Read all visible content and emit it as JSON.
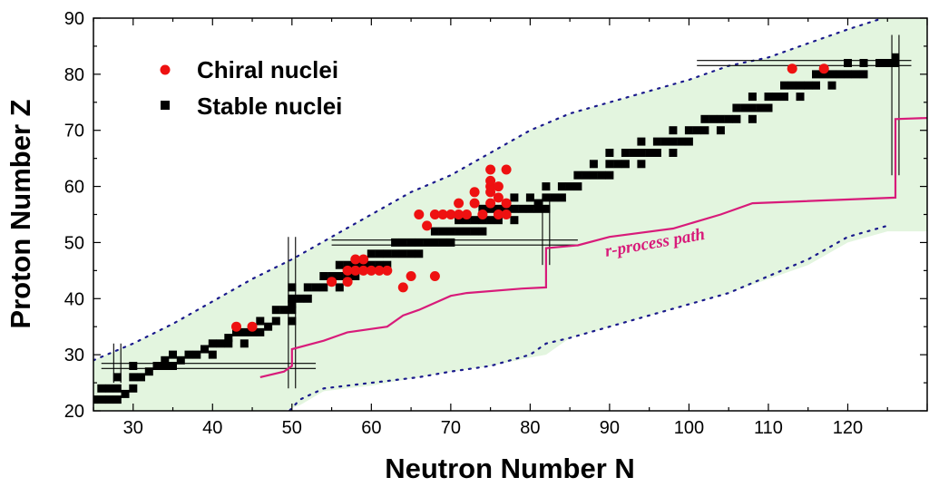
{
  "chart_data": {
    "type": "scatter",
    "title": "",
    "xlabel": "Neutron Number N",
    "ylabel": "Proton Number Z",
    "xlim": [
      25,
      130
    ],
    "ylim": [
      20,
      90
    ],
    "xticks": [
      30,
      40,
      50,
      60,
      70,
      80,
      90,
      100,
      110,
      120
    ],
    "yticks": [
      20,
      30,
      40,
      50,
      60,
      70,
      80,
      90
    ],
    "legend_position": "top-left",
    "colors": {
      "chiral": "#ee1111",
      "stable": "#000000",
      "rprocess": "#d81b7a",
      "limits": "#1a1a8c",
      "band": "#e3f5df"
    },
    "series": [
      {
        "name": "Chiral nuclei",
        "marker": "circle",
        "points": [
          [
            43,
            35
          ],
          [
            45,
            35
          ],
          [
            55,
            43
          ],
          [
            57,
            43
          ],
          [
            57,
            45
          ],
          [
            58,
            45
          ],
          [
            58,
            47
          ],
          [
            59,
            45
          ],
          [
            59,
            47
          ],
          [
            60,
            45
          ],
          [
            61,
            45
          ],
          [
            62,
            45
          ],
          [
            64,
            42
          ],
          [
            65,
            44
          ],
          [
            66,
            55
          ],
          [
            67,
            53
          ],
          [
            68,
            44
          ],
          [
            68,
            55
          ],
          [
            69,
            55
          ],
          [
            70,
            55
          ],
          [
            71,
            55
          ],
          [
            71,
            57
          ],
          [
            72,
            55
          ],
          [
            73,
            57
          ],
          [
            73,
            59
          ],
          [
            74,
            55
          ],
          [
            75,
            57
          ],
          [
            75,
            59
          ],
          [
            75,
            60
          ],
          [
            75,
            61
          ],
          [
            75,
            63
          ],
          [
            76,
            55
          ],
          [
            76,
            58
          ],
          [
            76,
            60
          ],
          [
            77,
            55
          ],
          [
            77,
            57
          ],
          [
            77,
            63
          ],
          [
            113,
            81
          ],
          [
            117,
            81
          ]
        ]
      },
      {
        "name": "Stable nuclei",
        "marker": "square",
        "points": [
          [
            25,
            22
          ],
          [
            26,
            22
          ],
          [
            27,
            22
          ],
          [
            28,
            22
          ],
          [
            26,
            24
          ],
          [
            27,
            24
          ],
          [
            28,
            24
          ],
          [
            29,
            23
          ],
          [
            30,
            24
          ],
          [
            28,
            26
          ],
          [
            30,
            26
          ],
          [
            31,
            26
          ],
          [
            30,
            28
          ],
          [
            32,
            27
          ],
          [
            33,
            28
          ],
          [
            34,
            28
          ],
          [
            34,
            29
          ],
          [
            35,
            30
          ],
          [
            35,
            28
          ],
          [
            36,
            29
          ],
          [
            37,
            30
          ],
          [
            38,
            30
          ],
          [
            39,
            31
          ],
          [
            40,
            32
          ],
          [
            40,
            30
          ],
          [
            41,
            32
          ],
          [
            42,
            32
          ],
          [
            42,
            33
          ],
          [
            43,
            34
          ],
          [
            44,
            34
          ],
          [
            44,
            32
          ],
          [
            45,
            34
          ],
          [
            46,
            34
          ],
          [
            46,
            36
          ],
          [
            47,
            35
          ],
          [
            48,
            36
          ],
          [
            48,
            38
          ],
          [
            49,
            38
          ],
          [
            50,
            36
          ],
          [
            50,
            38
          ],
          [
            50,
            39
          ],
          [
            50,
            40
          ],
          [
            50,
            42
          ],
          [
            51,
            40
          ],
          [
            52,
            40
          ],
          [
            52,
            42
          ],
          [
            53,
            42
          ],
          [
            54,
            42
          ],
          [
            54,
            44
          ],
          [
            55,
            44
          ],
          [
            56,
            42
          ],
          [
            56,
            44
          ],
          [
            56,
            46
          ],
          [
            57,
            44
          ],
          [
            57,
            46
          ],
          [
            58,
            44
          ],
          [
            58,
            46
          ],
          [
            59,
            46
          ],
          [
            60,
            46
          ],
          [
            60,
            48
          ],
          [
            61,
            46
          ],
          [
            61,
            48
          ],
          [
            62,
            46
          ],
          [
            62,
            48
          ],
          [
            63,
            48
          ],
          [
            63,
            50
          ],
          [
            64,
            48
          ],
          [
            64,
            50
          ],
          [
            65,
            48
          ],
          [
            65,
            50
          ],
          [
            66,
            48
          ],
          [
            66,
            50
          ],
          [
            67,
            50
          ],
          [
            68,
            50
          ],
          [
            68,
            52
          ],
          [
            69,
            50
          ],
          [
            69,
            52
          ],
          [
            70,
            50
          ],
          [
            70,
            52
          ],
          [
            71,
            52
          ],
          [
            71,
            54
          ],
          [
            72,
            52
          ],
          [
            72,
            54
          ],
          [
            73,
            52
          ],
          [
            73,
            54
          ],
          [
            74,
            52
          ],
          [
            74,
            54
          ],
          [
            74,
            56
          ],
          [
            75,
            54
          ],
          [
            75,
            56
          ],
          [
            76,
            54
          ],
          [
            76,
            56
          ],
          [
            77,
            56
          ],
          [
            78,
            54
          ],
          [
            78,
            56
          ],
          [
            78,
            58
          ],
          [
            79,
            56
          ],
          [
            80,
            56
          ],
          [
            80,
            58
          ],
          [
            81,
            56
          ],
          [
            81,
            57
          ],
          [
            82,
            56
          ],
          [
            82,
            58
          ],
          [
            82,
            60
          ],
          [
            83,
            58
          ],
          [
            84,
            58
          ],
          [
            84,
            60
          ],
          [
            85,
            60
          ],
          [
            86,
            60
          ],
          [
            86,
            62
          ],
          [
            87,
            62
          ],
          [
            88,
            62
          ],
          [
            88,
            64
          ],
          [
            89,
            62
          ],
          [
            90,
            62
          ],
          [
            90,
            64
          ],
          [
            90,
            66
          ],
          [
            91,
            64
          ],
          [
            92,
            64
          ],
          [
            92,
            66
          ],
          [
            93,
            66
          ],
          [
            94,
            64
          ],
          [
            94,
            66
          ],
          [
            94,
            68
          ],
          [
            95,
            66
          ],
          [
            96,
            66
          ],
          [
            96,
            68
          ],
          [
            97,
            68
          ],
          [
            98,
            66
          ],
          [
            98,
            68
          ],
          [
            98,
            70
          ],
          [
            99,
            68
          ],
          [
            100,
            68
          ],
          [
            100,
            70
          ],
          [
            101,
            70
          ],
          [
            102,
            70
          ],
          [
            102,
            72
          ],
          [
            103,
            72
          ],
          [
            104,
            70
          ],
          [
            104,
            72
          ],
          [
            105,
            72
          ],
          [
            106,
            72
          ],
          [
            106,
            74
          ],
          [
            107,
            74
          ],
          [
            108,
            72
          ],
          [
            108,
            74
          ],
          [
            108,
            76
          ],
          [
            109,
            74
          ],
          [
            110,
            74
          ],
          [
            110,
            76
          ],
          [
            111,
            76
          ],
          [
            112,
            76
          ],
          [
            112,
            78
          ],
          [
            113,
            78
          ],
          [
            114,
            76
          ],
          [
            114,
            78
          ],
          [
            115,
            78
          ],
          [
            116,
            78
          ],
          [
            116,
            80
          ],
          [
            117,
            80
          ],
          [
            118,
            78
          ],
          [
            118,
            80
          ],
          [
            119,
            80
          ],
          [
            120,
            80
          ],
          [
            120,
            82
          ],
          [
            121,
            80
          ],
          [
            122,
            80
          ],
          [
            122,
            82
          ],
          [
            124,
            82
          ],
          [
            125,
            82
          ],
          [
            126,
            82
          ],
          [
            126,
            83
          ]
        ]
      }
    ],
    "rprocess_path": {
      "label": "r-process path",
      "points": [
        [
          46,
          26
        ],
        [
          49,
          27
        ],
        [
          50,
          28
        ],
        [
          50,
          31
        ],
        [
          54,
          32.5
        ],
        [
          56,
          33.5
        ],
        [
          57,
          34
        ],
        [
          62,
          35
        ],
        [
          64,
          37
        ],
        [
          66,
          38
        ],
        [
          70,
          40.5
        ],
        [
          72,
          41
        ],
        [
          79,
          41.8
        ],
        [
          82,
          42
        ],
        [
          82,
          49
        ],
        [
          86,
          49.5
        ],
        [
          90,
          51
        ],
        [
          98,
          52.5
        ],
        [
          104,
          55
        ],
        [
          108,
          57
        ],
        [
          126,
          58
        ],
        [
          126,
          72
        ],
        [
          130,
          72.2
        ]
      ]
    },
    "drip_lines": {
      "upper": [
        [
          25,
          29
        ],
        [
          30,
          32
        ],
        [
          35,
          35.5
        ],
        [
          40,
          39.5
        ],
        [
          45,
          43.5
        ],
        [
          50,
          47
        ],
        [
          55,
          51
        ],
        [
          60,
          55
        ],
        [
          65,
          59
        ],
        [
          70,
          62
        ],
        [
          75,
          66
        ],
        [
          80,
          70
        ],
        [
          85,
          73
        ],
        [
          90,
          75
        ],
        [
          95,
          77
        ],
        [
          100,
          79
        ],
        [
          105,
          81.5
        ],
        [
          110,
          83
        ],
        [
          115,
          85.5
        ],
        [
          120,
          88
        ],
        [
          124,
          89.8
        ]
      ],
      "lower": [
        [
          49,
          19
        ],
        [
          51,
          22
        ],
        [
          54,
          24
        ],
        [
          60,
          25
        ],
        [
          66,
          26
        ],
        [
          70,
          27
        ],
        [
          75,
          28
        ],
        [
          80,
          30
        ],
        [
          82,
          32
        ],
        [
          85,
          33
        ],
        [
          90,
          35
        ],
        [
          95,
          37
        ],
        [
          100,
          39
        ],
        [
          105,
          41
        ],
        [
          110,
          44
        ],
        [
          115,
          47
        ],
        [
          120,
          51
        ],
        [
          125,
          53
        ]
      ]
    },
    "band": [
      [
        25,
        29
      ],
      [
        30,
        32
      ],
      [
        35,
        35.5
      ],
      [
        40,
        39.5
      ],
      [
        45,
        43.5
      ],
      [
        50,
        47
      ],
      [
        55,
        51
      ],
      [
        60,
        55
      ],
      [
        65,
        59
      ],
      [
        70,
        62
      ],
      [
        75,
        66
      ],
      [
        80,
        70
      ],
      [
        85,
        73
      ],
      [
        90,
        75
      ],
      [
        95,
        77
      ],
      [
        100,
        79
      ],
      [
        105,
        81.5
      ],
      [
        110,
        83
      ],
      [
        115,
        85.5
      ],
      [
        120,
        88
      ],
      [
        124,
        90
      ],
      [
        130,
        90
      ],
      [
        130,
        52
      ],
      [
        125,
        52
      ],
      [
        120,
        50
      ],
      [
        115,
        46
      ],
      [
        110,
        43.5
      ],
      [
        105,
        41
      ],
      [
        100,
        39
      ],
      [
        95,
        37
      ],
      [
        90,
        35
      ],
      [
        85,
        33
      ],
      [
        82,
        30
      ],
      [
        80,
        29.5
      ],
      [
        75,
        28
      ],
      [
        70,
        27
      ],
      [
        66,
        26
      ],
      [
        60,
        24.5
      ],
      [
        54,
        23.5
      ],
      [
        51,
        21
      ],
      [
        49,
        20
      ],
      [
        25,
        20
      ]
    ],
    "magic_numbers": [
      28,
      50,
      82,
      126
    ]
  }
}
